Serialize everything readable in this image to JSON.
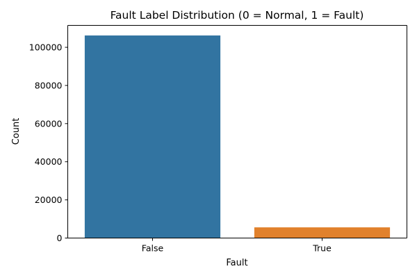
{
  "chart_data": {
    "type": "bar",
    "title": "Fault Label Distribution (0 = Normal, 1 = Fault)",
    "xlabel": "Fault",
    "ylabel": "Count",
    "categories": [
      "False",
      "True"
    ],
    "values": [
      106200,
      5600
    ],
    "colors": [
      "#3274a1",
      "#e1812c"
    ],
    "ylim": [
      0,
      111500
    ],
    "yticks": [
      0,
      20000,
      40000,
      60000,
      80000,
      100000
    ],
    "ytick_labels": [
      "0",
      "20000",
      "40000",
      "60000",
      "80000",
      "100000"
    ],
    "grid": false,
    "legend": "none"
  }
}
